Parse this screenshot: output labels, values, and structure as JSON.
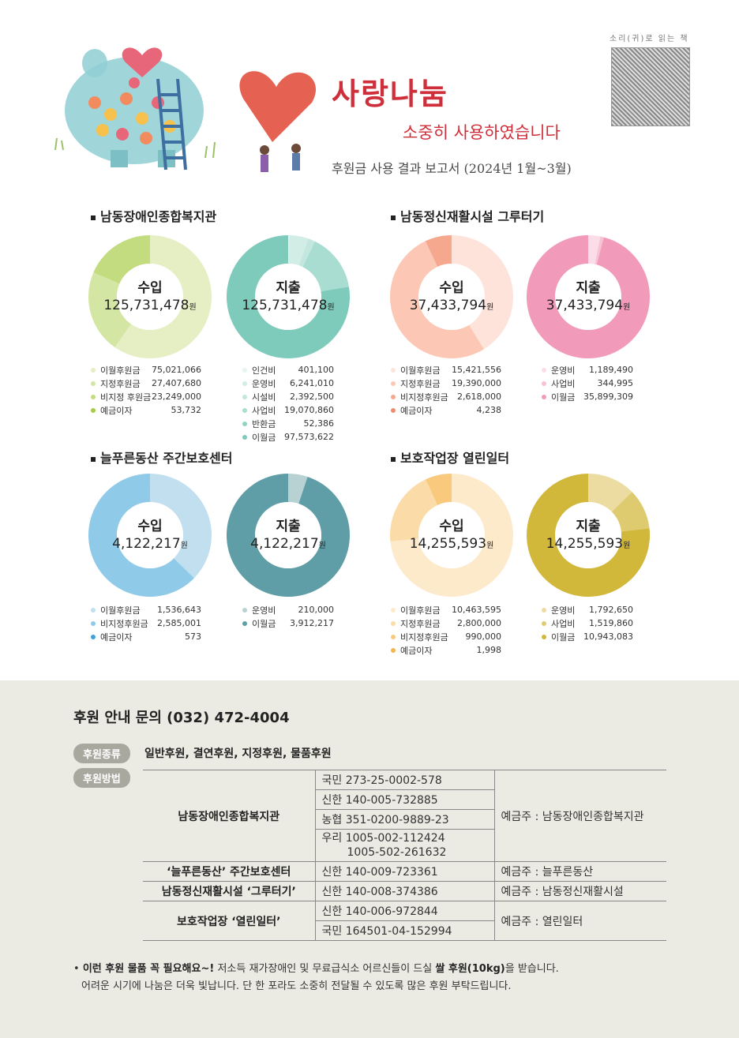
{
  "header": {
    "title": "사랑나눔",
    "subtitle": "소중히 사용하였습니다",
    "report": "후원금 사용 결과 보고서 (2024년 1월~3월)",
    "qr_label": "소리(귀)로 읽는 책"
  },
  "sections": [
    {
      "title": "남동장애인종합복지관",
      "income": {
        "label": "수입",
        "total": "125,731,478",
        "unit": "원",
        "items": [
          {
            "label": "이월후원금",
            "value": "75,021,066",
            "amount": 75021066,
            "color": "#e6efc3"
          },
          {
            "label": "지정후원금",
            "value": "27,407,680",
            "amount": 27407680,
            "color": "#d4e6a4"
          },
          {
            "label": "비지정 후원금",
            "value": "23,249,000",
            "amount": 23249000,
            "color": "#c2dc7f"
          },
          {
            "label": "예금이자",
            "value": "53,732",
            "amount": 53732,
            "color": "#a6cc45"
          }
        ]
      },
      "expense": {
        "label": "지출",
        "total": "125,731,478",
        "unit": "원",
        "items": [
          {
            "label": "인건비",
            "value": "401,100",
            "amount": 401100,
            "color": "#e6f5f1"
          },
          {
            "label": "운영비",
            "value": "6,241,010",
            "amount": 6241010,
            "color": "#d2ede6"
          },
          {
            "label": "시설비",
            "value": "2,392,500",
            "amount": 2392500,
            "color": "#c3e7de"
          },
          {
            "label": "사업비",
            "value": "19,070,860",
            "amount": 19070860,
            "color": "#a9ddd1"
          },
          {
            "label": "반환금",
            "value": "52,386",
            "amount": 52386,
            "color": "#92d3c4"
          },
          {
            "label": "이월금",
            "value": "97,573,622",
            "amount": 97573622,
            "color": "#7ecbbb"
          }
        ]
      }
    },
    {
      "title": "남동정신재활시설 그루터기",
      "income": {
        "label": "수입",
        "total": "37,433,794",
        "unit": "원",
        "items": [
          {
            "label": "이월후원금",
            "value": "15,421,556",
            "amount": 15421556,
            "color": "#fde3d9"
          },
          {
            "label": "지정후원금",
            "value": "19,390,000",
            "amount": 19390000,
            "color": "#fcc8b5"
          },
          {
            "label": "비지정후원금",
            "value": "2,618,000",
            "amount": 2618000,
            "color": "#f6a88f"
          },
          {
            "label": "예금이자",
            "value": "4,238",
            "amount": 4238,
            "color": "#ef8d72"
          }
        ]
      },
      "expense": {
        "label": "지출",
        "total": "37,433,794",
        "unit": "원",
        "items": [
          {
            "label": "운영비",
            "value": "1,189,490",
            "amount": 1189490,
            "color": "#fbdde7"
          },
          {
            "label": "사업비",
            "value": "344,995",
            "amount": 344995,
            "color": "#f7c2d4"
          },
          {
            "label": "이월금",
            "value": "35,899,309",
            "amount": 35899309,
            "color": "#f29ab9"
          }
        ]
      }
    },
    {
      "title": "늘푸른동산 주간보호센터",
      "income": {
        "label": "수입",
        "total": "4,122,217",
        "unit": "원",
        "items": [
          {
            "label": "이월후원금",
            "value": "1,536,643",
            "amount": 1536643,
            "color": "#c2dff0"
          },
          {
            "label": "비지정후원금",
            "value": "2,585,001",
            "amount": 2585001,
            "color": "#8fcbe8"
          },
          {
            "label": "예금이자",
            "value": "573",
            "amount": 573,
            "color": "#3da3d6"
          }
        ]
      },
      "expense": {
        "label": "지출",
        "total": "4,122,217",
        "unit": "원",
        "items": [
          {
            "label": "운영비",
            "value": "210,000",
            "amount": 210000,
            "color": "#b8d2d4"
          },
          {
            "label": "이월금",
            "value": "3,912,217",
            "amount": 3912217,
            "color": "#5f9ea6"
          }
        ]
      }
    },
    {
      "title": "보호작업장 열린일터",
      "income": {
        "label": "수입",
        "total": "14,255,593",
        "unit": "원",
        "items": [
          {
            "label": "이월후원금",
            "value": "10,463,595",
            "amount": 10463595,
            "color": "#fdeacb"
          },
          {
            "label": "지정후원금",
            "value": "2,800,000",
            "amount": 2800000,
            "color": "#fbdca8"
          },
          {
            "label": "비지정후원금",
            "value": "990,000",
            "amount": 990000,
            "color": "#f9ca7e"
          },
          {
            "label": "예금이자",
            "value": "1,998",
            "amount": 1998,
            "color": "#f4b54a"
          }
        ]
      },
      "expense": {
        "label": "지출",
        "total": "14,255,593",
        "unit": "원",
        "items": [
          {
            "label": "운영비",
            "value": "1,792,650",
            "amount": 1792650,
            "color": "#ecdca2"
          },
          {
            "label": "사업비",
            "value": "1,519,860",
            "amount": 1519860,
            "color": "#dfcb6f"
          },
          {
            "label": "이월금",
            "value": "10,943,083",
            "amount": 10943083,
            "color": "#d1b73a"
          }
        ]
      }
    }
  ],
  "contact": {
    "text": "후원 안내 문의 (032) 472-4004",
    "type_label": "후원종류",
    "types": "일반후원, 결연후원, 지정후원, 물품후원",
    "method_label": "후원방법"
  },
  "accounts": [
    {
      "org": "남동장애인종합복지관",
      "accounts": [
        "국민 273-25-0002-578",
        "신한 140-005-732885",
        "농협 351-0200-9889-23",
        "우리 1005-002-112424",
        "1005-502-261632"
      ],
      "holder": "예금주 : 남동장애인종합복지관"
    },
    {
      "org": "‘늘푸른동산’ 주간보호센터",
      "accounts": [
        "신한 140-009-723361"
      ],
      "holder": "예금주 : 늘푸른동산"
    },
    {
      "org": "남동정신재활시설 ‘그루터기’",
      "accounts": [
        "신한 140-008-374386"
      ],
      "holder": "예금주 : 남동정신재활시설"
    },
    {
      "org": "보호작업장 ‘열린일터’",
      "accounts": [
        "신한 140-006-972844",
        "국민 164501-04-152994"
      ],
      "holder": "예금주 : 열린일터"
    }
  ],
  "note": {
    "bullet": "•",
    "lead": "이런 후원 물품 꼭 필요해요~!",
    "text1": " 저소득 재가장애인 및 무료급식소 어르신들이 드실 ",
    "bold": "쌀 후원(10kg)",
    "text2": "을 받습니다.",
    "line2": "어려운 시기에 나눔은 더욱 빛납니다. 단 한 포라도 소중히 전달될 수 있도록 많은 후원 부탁드립니다."
  }
}
